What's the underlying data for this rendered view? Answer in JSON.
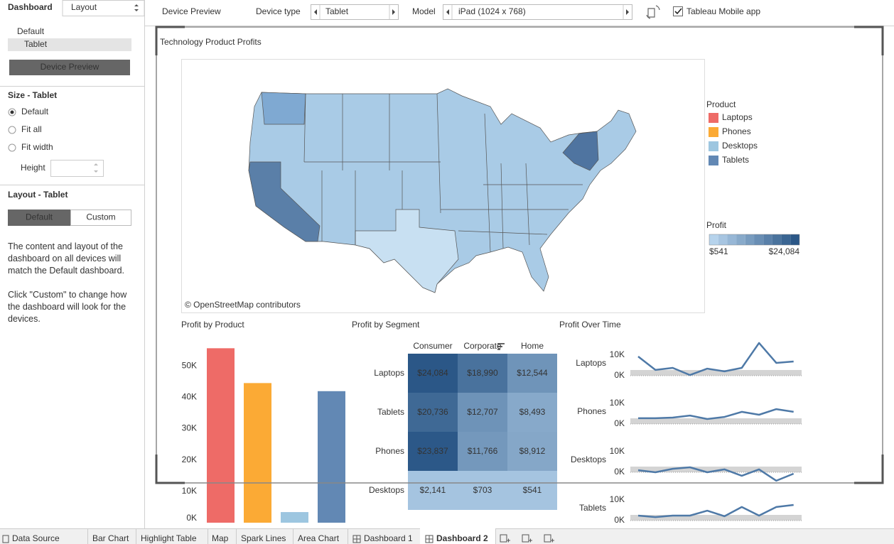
{
  "sidebar": {
    "tabs": [
      "Dashboard",
      "Layout"
    ],
    "devices": [
      "Default",
      "Tablet"
    ],
    "preview_button": "Device Preview",
    "size_title": "Size - Tablet",
    "size_options": [
      "Default",
      "Fit all",
      "Fit width"
    ],
    "height_label": "Height",
    "layout_title": "Layout - Tablet",
    "layout_buttons": [
      "Default",
      "Custom"
    ],
    "help": [
      "The content and layout of the dashboard on all devices will match the Default dashboard.",
      "Click \"Custom\" to change how the dashboard will look for the devices."
    ]
  },
  "toolbar": {
    "device_preview": "Device Preview",
    "device_type_label": "Device type",
    "device_type": "Tablet",
    "model_label": "Model",
    "model": "iPad (1024 x 768)",
    "mobile_app": "Tableau Mobile app"
  },
  "dashboard": {
    "title": "Technology Product Profits",
    "map_credit": "© OpenStreetMap contributors",
    "legend": {
      "title": "Product",
      "items": [
        {
          "name": "Laptops",
          "color": "#ee6b67"
        },
        {
          "name": "Phones",
          "color": "#fbaa35"
        },
        {
          "name": "Desktops",
          "color": "#9dc6e0"
        },
        {
          "name": "Tablets",
          "color": "#6288b4"
        }
      ]
    },
    "profit_legend": {
      "title": "Profit",
      "min": 541,
      "max": 24084,
      "min_label": "$541",
      "max_label": "$24,084",
      "colors": [
        "#b6d3ec",
        "#2b5787"
      ]
    }
  },
  "bar_chart": {
    "type": "bar",
    "title": "Profit by Product",
    "values": [
      55618,
      44515,
      3385,
      41936
    ],
    "ylim": [
      0,
      60000
    ],
    "yticks": [
      {
        "value": 0,
        "label": "0K"
      },
      {
        "value": 10000,
        "label": "10K"
      },
      {
        "value": 20000,
        "label": "20K"
      },
      {
        "value": 30000,
        "label": "30K"
      },
      {
        "value": 40000,
        "label": "40K"
      },
      {
        "value": 50000,
        "label": "50K"
      }
    ]
  },
  "highlight_table": {
    "type": "heatmap",
    "title": "Profit by Segment",
    "columns": [
      "Consumer",
      "Corporate",
      "Home"
    ],
    "rows": [
      "Laptops",
      "Tablets",
      "Phones",
      "Desktops"
    ],
    "values": [
      [
        24084,
        18990,
        12544
      ],
      [
        20736,
        12707,
        8493
      ],
      [
        23837,
        11766,
        8912
      ],
      [
        2141,
        703,
        541
      ]
    ],
    "value_labels": [
      [
        "$24,084",
        "$18,990",
        "$12,544"
      ],
      [
        "$20,736",
        "$12,707",
        "$8,493"
      ],
      [
        "$23,837",
        "$11,766",
        "$8,912"
      ],
      [
        "$2,141",
        "$703",
        "$541"
      ]
    ]
  },
  "sparklines": {
    "type": "line",
    "title": "Profit Over Time",
    "color": "#4e79a7",
    "ylim": [
      -6000,
      17000
    ],
    "yticks": [
      {
        "value": 0,
        "label": "0K"
      },
      {
        "value": 10000,
        "label": "10K"
      }
    ],
    "series": [
      {
        "name": "Laptops",
        "values": [
          9300,
          2800,
          3800,
          300,
          3400,
          2100,
          3800,
          15900,
          6200,
          6900
        ]
      },
      {
        "name": "Phones",
        "values": [
          2800,
          2800,
          3100,
          4100,
          2400,
          3400,
          5900,
          4500,
          7200,
          5900
        ]
      },
      {
        "name": "Desktops",
        "values": [
          1000,
          0,
          1700,
          2400,
          0,
          1400,
          -1700,
          1400,
          -4100,
          -700
        ]
      },
      {
        "name": "Tablets",
        "values": [
          2400,
          1700,
          2400,
          2400,
          4800,
          2100,
          6600,
          2400,
          6600,
          7600
        ]
      }
    ]
  },
  "sheet_tabs": {
    "items": [
      "Data Source",
      "Bar Chart",
      "Highlight Table",
      "Map",
      "Spark Lines",
      "Area Chart",
      "Dashboard 1",
      "Dashboard 2"
    ],
    "active": "Dashboard 2"
  }
}
